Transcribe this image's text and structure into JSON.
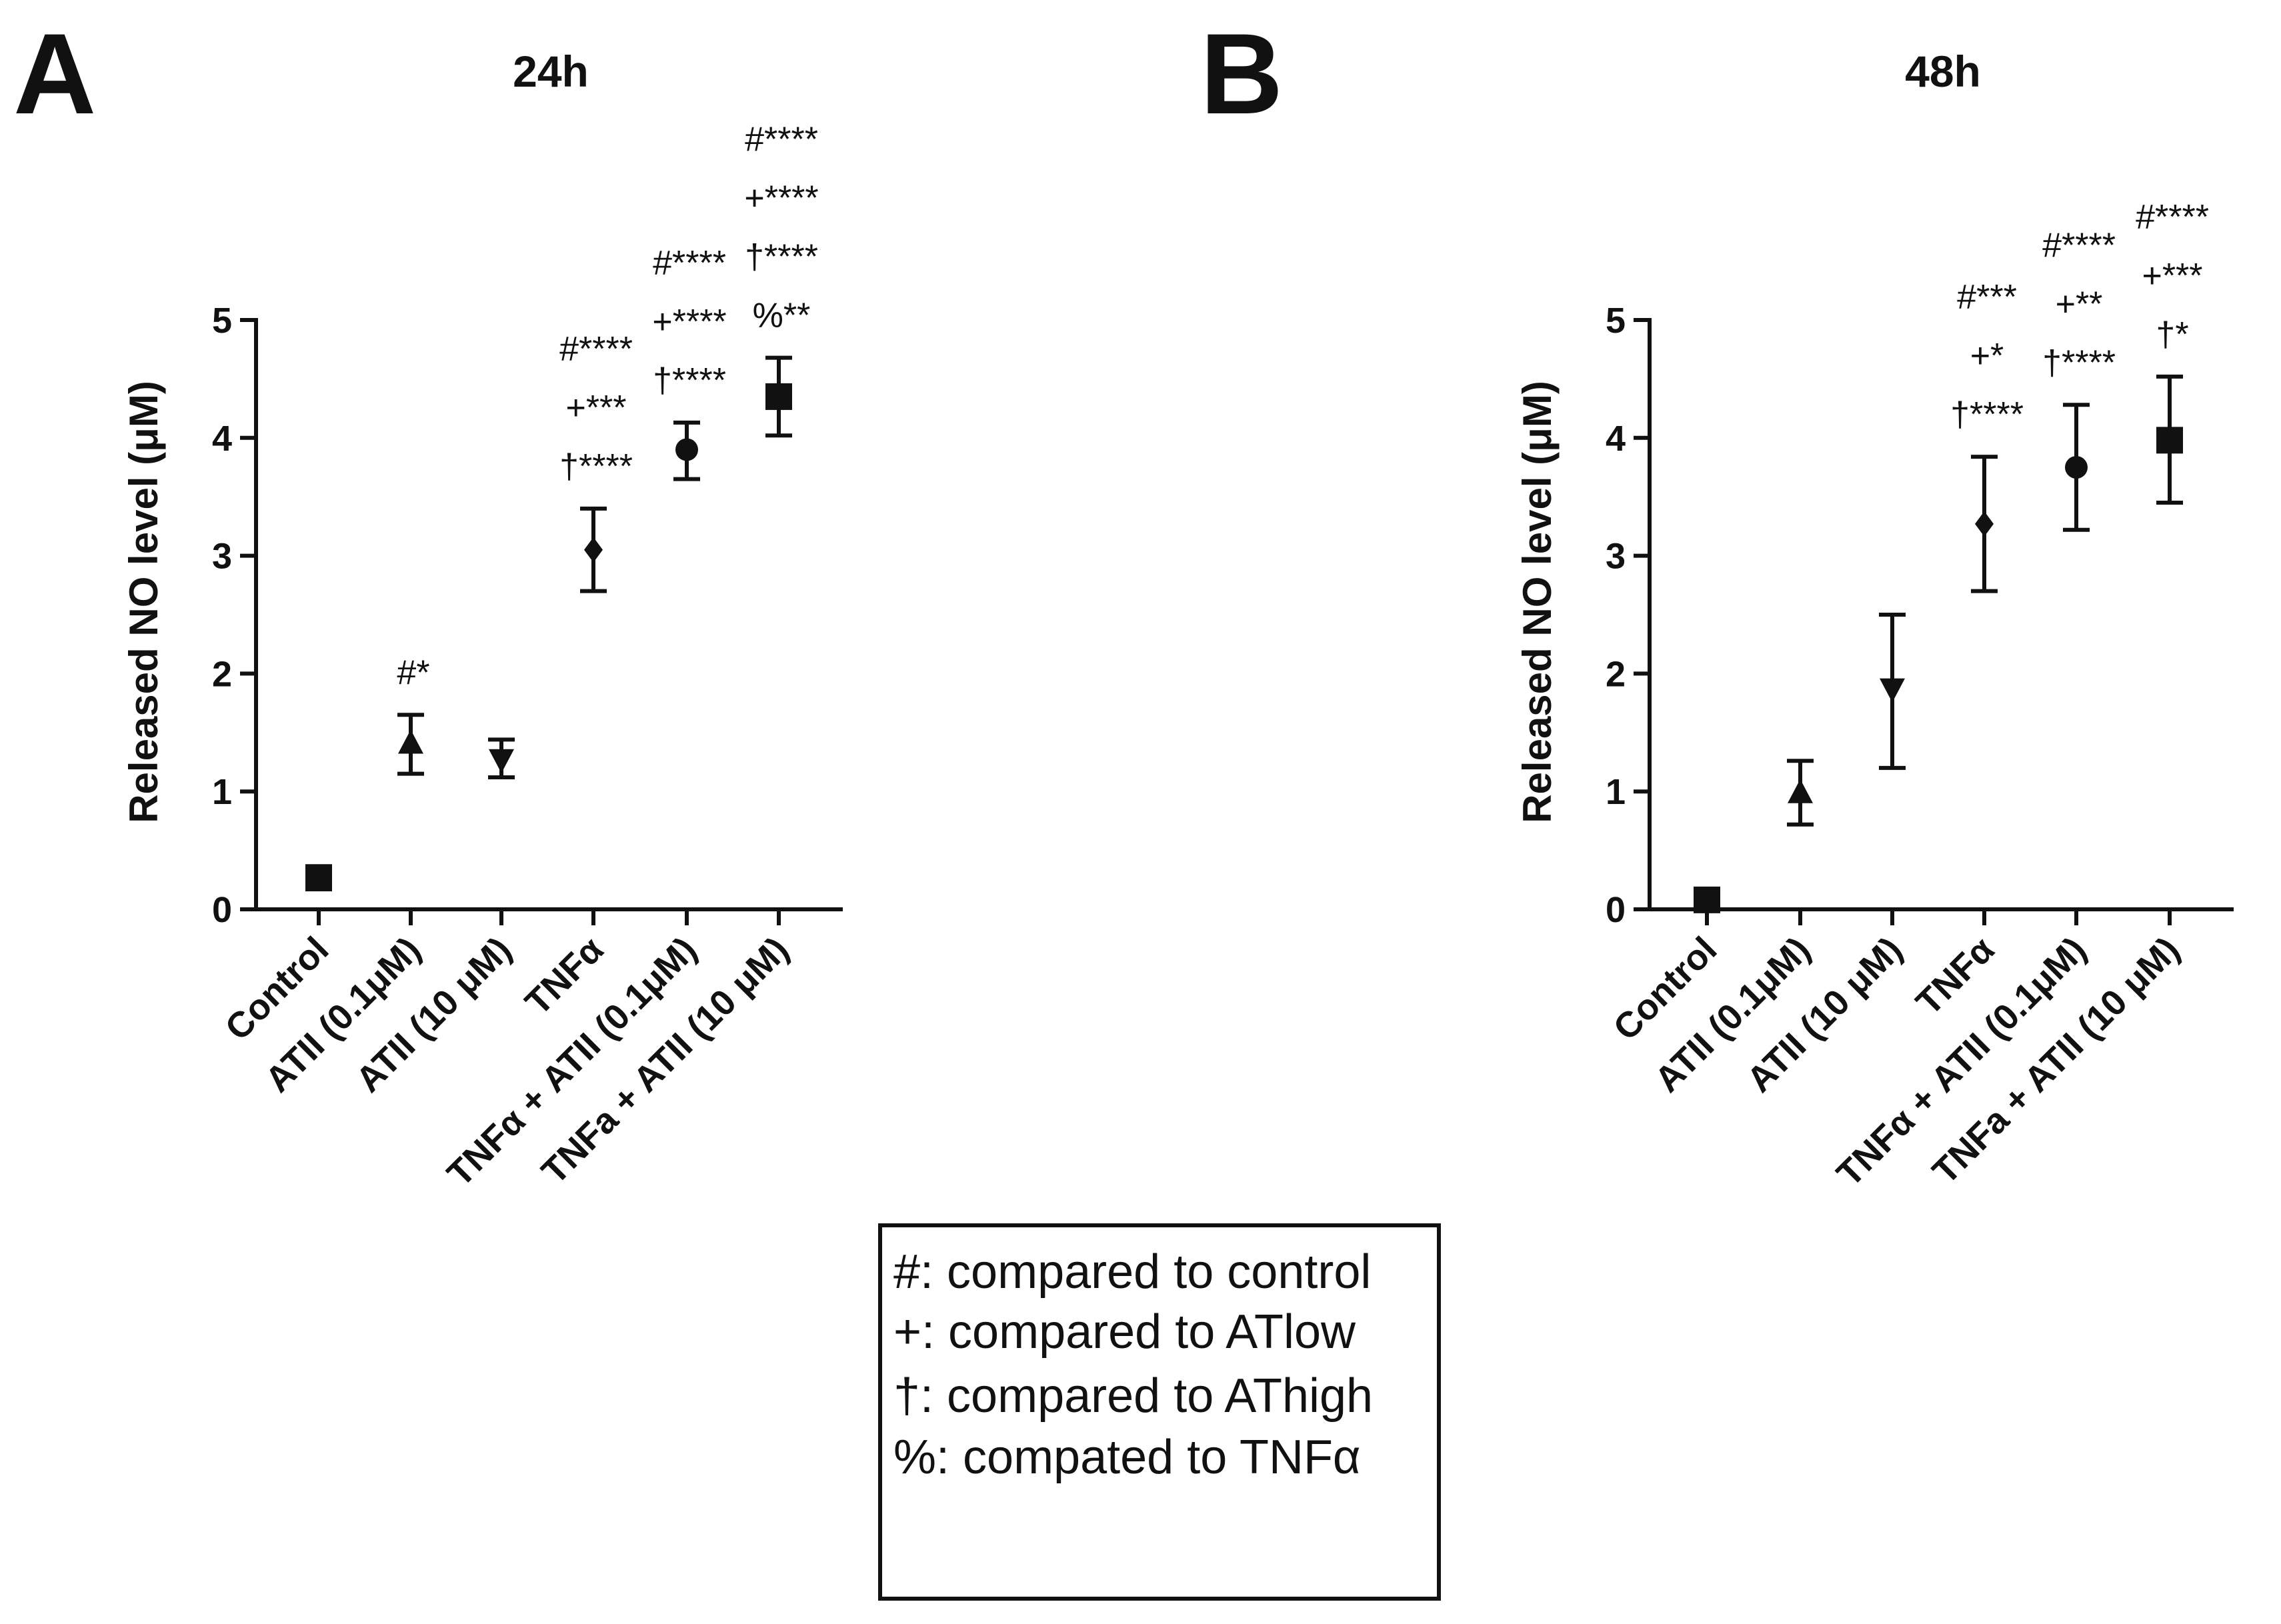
{
  "chart_data": [
    {
      "type": "scatter",
      "panel": "A",
      "title": "24h",
      "xlabel": "",
      "ylabel": "Released NO level (μM)",
      "ylim": [
        0,
        5
      ],
      "yticks": [
        "0",
        "1",
        "2",
        "3",
        "4",
        "5"
      ],
      "categories": [
        "Control",
        "ATII (0.1μM)",
        "ATII (10 μM)",
        "TNFα",
        "TNFα + ATII (0.1μM)",
        "TNFa + ATII (10 μM)"
      ],
      "markers": [
        "square",
        "triangle-up",
        "triangle-down",
        "diamond",
        "circle",
        "square"
      ],
      "values": [
        0.27,
        1.4,
        1.28,
        3.05,
        3.9,
        4.35
      ],
      "err_low": [
        0.17,
        1.15,
        1.12,
        2.7,
        3.65,
        4.02
      ],
      "err_high": [
        0.35,
        1.65,
        1.44,
        3.4,
        4.13,
        4.68
      ],
      "annotations": [
        [],
        [
          "#*"
        ],
        [],
        [
          "#****",
          "+***",
          "†****"
        ],
        [
          "#****",
          "+****",
          "†****"
        ],
        [
          "#****",
          "+****",
          "†****",
          "%**"
        ]
      ]
    },
    {
      "type": "scatter",
      "panel": "B",
      "title": "48h",
      "xlabel": "",
      "ylabel": "Released NO level (μM)",
      "ylim": [
        0,
        5
      ],
      "yticks": [
        "0",
        "1",
        "2",
        "3",
        "4",
        "5"
      ],
      "categories": [
        "Control",
        "ATII (0.1μM)",
        "ATII (10 μM)",
        "TNFα",
        "TNFα + ATII (0.1μM)",
        "TNFa + ATII (10 μM)"
      ],
      "markers": [
        "square",
        "triangle-up",
        "triangle-down",
        "diamond",
        "circle",
        "square"
      ],
      "values": [
        0.08,
        0.98,
        1.88,
        3.27,
        3.75,
        3.98
      ],
      "err_low": [
        0.01,
        0.72,
        1.2,
        2.7,
        3.22,
        3.45
      ],
      "err_high": [
        0.14,
        1.26,
        2.5,
        3.84,
        4.28,
        4.52
      ],
      "annotations": [
        [],
        [],
        [],
        [
          "#***",
          "+*",
          "†****"
        ],
        [
          "#****",
          "+**",
          "†****"
        ],
        [
          "#****",
          "+***",
          "†*"
        ]
      ]
    }
  ],
  "legend": [
    "#: compared to control",
    "+: compared to ATlow",
    "†: compared to AThigh",
    "%: compated to TNFα"
  ]
}
